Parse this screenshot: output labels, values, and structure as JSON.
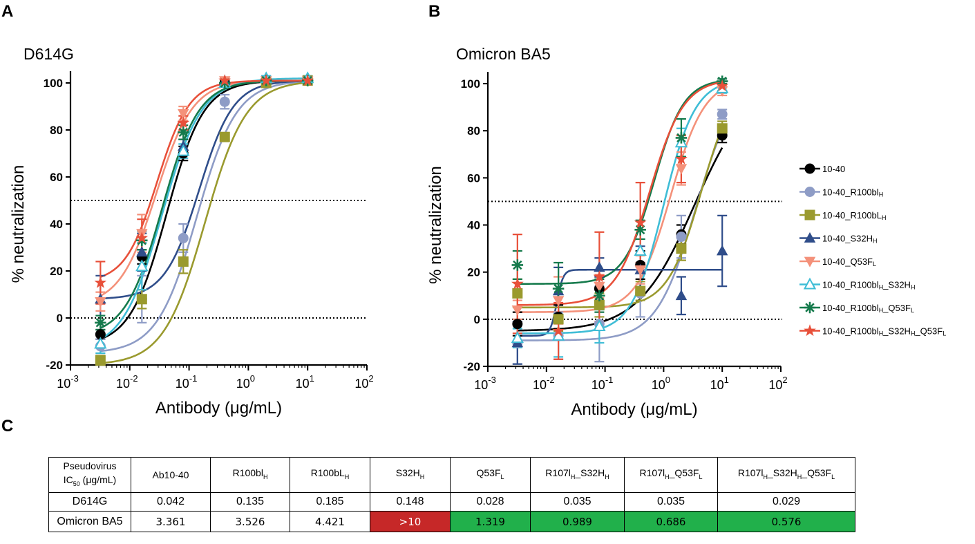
{
  "panels": {
    "a": {
      "letter": "A",
      "title": "D614G"
    },
    "b": {
      "letter": "B",
      "title": "Omicron BA5"
    },
    "c": {
      "letter": "C"
    }
  },
  "axes": {
    "ylabel": "% neutralization",
    "xlabel": "Antibody (μg/mL)",
    "y_ticks": [
      100,
      80,
      60,
      40,
      20,
      0,
      -20
    ],
    "x_ticks": [
      {
        "base": "10",
        "exp": "-3"
      },
      {
        "base": "10",
        "exp": "-2"
      },
      {
        "base": "10",
        "exp": "-1"
      },
      {
        "base": "10",
        "exp": "0"
      },
      {
        "base": "10",
        "exp": "1"
      },
      {
        "base": "10",
        "exp": "2"
      }
    ]
  },
  "legend": [
    {
      "key": "s1",
      "name": "10-40",
      "color": "#000000",
      "marker": "circle"
    },
    {
      "key": "s2",
      "name": "10-40_R100blH",
      "parts": [
        "10-40_R100bl",
        "H"
      ],
      "color": "#8e9cc6",
      "marker": "circle"
    },
    {
      "key": "s3",
      "name": "10-40_R100bLH",
      "parts": [
        "10-40_R100bL",
        "H"
      ],
      "color": "#9a9a2e",
      "marker": "square"
    },
    {
      "key": "s4",
      "name": "10-40_S32HH",
      "parts": [
        "10-40_S32H",
        "H"
      ],
      "color": "#2f4d8a",
      "marker": "triangle-up"
    },
    {
      "key": "s5",
      "name": "10-40_Q53FL",
      "parts": [
        "10-40_Q53F",
        "L"
      ],
      "color": "#f4917a",
      "marker": "triangle-down"
    },
    {
      "key": "s6",
      "name": "10-40_R100blH_S32HH",
      "parts": [
        "10-40_R100bl",
        "H",
        "_S32H",
        "H"
      ],
      "color": "#3fbdd6",
      "marker": "triangle-open"
    },
    {
      "key": "s7",
      "name": "10-40_R100blH_Q53FL",
      "parts": [
        "10-40_R100bl",
        "H",
        "_Q53F",
        "L"
      ],
      "color": "#157a4c",
      "marker": "asterisk"
    },
    {
      "key": "s8",
      "name": "10-40_R100blH_S32HH_Q53FL",
      "parts": [
        "10-40_R100bl",
        "H",
        "_S32H",
        "H",
        "_Q53F",
        "L"
      ],
      "color": "#e8503a",
      "marker": "star"
    }
  ],
  "chart_data": [
    {
      "type": "scatter",
      "title": "D614G",
      "xlabel": "Antibody (μg/mL)",
      "ylabel": "% neutralization",
      "x_scale": "log10",
      "xlim": [
        0.001,
        100
      ],
      "ylim": [
        -20,
        105
      ],
      "reference_lines_y": [
        50,
        0
      ],
      "x": [
        0.0032,
        0.016,
        0.08,
        0.4,
        2,
        10
      ],
      "series": [
        {
          "key": "s1",
          "name": "10-40",
          "values": [
            -7,
            26,
            70,
            100,
            101,
            101
          ],
          "err": [
            2,
            3,
            3,
            1,
            1,
            1
          ],
          "fit": {
            "bottom": -12,
            "top": 101,
            "ic50": 0.042,
            "hill": 1.4
          }
        },
        {
          "key": "s2",
          "name": "10-40_R100blH",
          "values": [
            -12,
            8,
            34,
            92,
            101,
            101
          ],
          "err": [
            3,
            10,
            6,
            3,
            1,
            1
          ],
          "fit": {
            "bottom": -15,
            "top": 101,
            "ic50": 0.135,
            "hill": 1.3
          }
        },
        {
          "key": "s3",
          "name": "10-40_R100bLH",
          "values": [
            -18,
            8,
            24,
            77,
            100,
            101
          ],
          "err": [
            2,
            4,
            5,
            1,
            1,
            1
          ],
          "fit": {
            "bottom": -20,
            "top": 101,
            "ic50": 0.185,
            "hill": 1.25
          }
        },
        {
          "key": "s4",
          "name": "10-40_S32HH",
          "values": [
            8,
            28,
            73,
            101,
            102,
            102
          ],
          "err": [
            10,
            8,
            3,
            1,
            1,
            1
          ],
          "fit": {
            "bottom": 8,
            "top": 101,
            "ic50": 0.148,
            "hill": 1.5
          }
        },
        {
          "key": "s5",
          "name": "10-40_Q53FL",
          "values": [
            7,
            36,
            87,
            101,
            101,
            101
          ],
          "err": [
            4,
            8,
            3,
            1,
            1,
            1
          ],
          "fit": {
            "bottom": 5,
            "top": 101,
            "ic50": 0.028,
            "hill": 1.4
          }
        },
        {
          "key": "s6",
          "name": "10-40_R100blH_S32HH",
          "values": [
            -11,
            22,
            71,
            100,
            102,
            102
          ],
          "err": [
            4,
            10,
            3,
            1,
            1,
            1
          ],
          "fit": {
            "bottom": -14,
            "top": 102,
            "ic50": 0.035,
            "hill": 1.3
          }
        },
        {
          "key": "s7",
          "name": "10-40_R100blH_Q53FL",
          "values": [
            -2,
            33,
            79,
            100,
            101,
            101
          ],
          "err": [
            3,
            4,
            3,
            1,
            1,
            1
          ],
          "fit": {
            "bottom": -8,
            "top": 101,
            "ic50": 0.035,
            "hill": 1.4
          }
        },
        {
          "key": "s8",
          "name": "10-40_R100blH_S32HH_Q53FL",
          "values": [
            15,
            34,
            83,
            101,
            101,
            101
          ],
          "err": [
            9,
            8,
            3,
            1,
            1,
            1
          ],
          "fit": {
            "bottom": 15,
            "top": 101,
            "ic50": 0.029,
            "hill": 1.6
          }
        }
      ]
    },
    {
      "type": "scatter",
      "title": "Omicron BA5",
      "xlabel": "Antibody (μg/mL)",
      "ylabel": "% neutralization",
      "x_scale": "log10",
      "xlim": [
        0.001,
        100
      ],
      "ylim": [
        -20,
        105
      ],
      "reference_lines_y": [
        50,
        0
      ],
      "x": [
        0.0032,
        0.016,
        0.08,
        0.4,
        2,
        10
      ],
      "series": [
        {
          "key": "s1",
          "name": "10-40",
          "values": [
            -2,
            1,
            13,
            23,
            36,
            78
          ],
          "err": [
            5,
            5,
            5,
            6,
            4,
            3
          ],
          "fit": {
            "bottom": -5,
            "top": 102,
            "ic50": 3.361,
            "hill": 0.9
          }
        },
        {
          "key": "s2",
          "name": "10-40_R100blH",
          "values": [
            -10,
            -7,
            -2,
            11,
            35,
            87
          ],
          "err": [
            9,
            10,
            16,
            10,
            9,
            2
          ],
          "fit": {
            "bottom": -9,
            "top": 103,
            "ic50": 3.526,
            "hill": 1.3
          }
        },
        {
          "key": "s3",
          "name": "10-40_R100bLH",
          "values": [
            11,
            0,
            6,
            12,
            30,
            81
          ],
          "err": [
            6,
            5,
            5,
            4,
            5,
            3
          ],
          "fit": {
            "bottom": 5,
            "top": 104,
            "ic50": 4.421,
            "hill": 1.5
          }
        },
        {
          "key": "s4",
          "name": "10-40_S32HH",
          "values": [
            -10,
            12,
            22,
            21,
            10,
            29
          ],
          "err": [
            9,
            10,
            4,
            10,
            8,
            15
          ],
          "fit": {
            "bottom": -7,
            "top": 21,
            "ic50": 0.015,
            "hill": 8
          }
        },
        {
          "key": "s5",
          "name": "10-40_Q53FL",
          "values": [
            4,
            8,
            14,
            21,
            64,
            97
          ],
          "err": [
            4,
            10,
            5,
            6,
            7,
            2
          ],
          "fit": {
            "bottom": 3,
            "top": 102,
            "ic50": 1.319,
            "hill": 1.5
          }
        },
        {
          "key": "s6",
          "name": "10-40_R100blH_S32HH",
          "values": [
            -8,
            -7,
            -3,
            29,
            75,
            98
          ],
          "err": [
            4,
            9,
            7,
            5,
            6,
            2
          ],
          "fit": {
            "bottom": -6,
            "top": 102,
            "ic50": 0.989,
            "hill": 1.6
          }
        },
        {
          "key": "s7",
          "name": "10-40_R100blH_Q53FL",
          "values": [
            23,
            13,
            10,
            38,
            77,
            101
          ],
          "err": [
            6,
            11,
            7,
            4,
            8,
            1
          ],
          "fit": {
            "bottom": 15,
            "top": 102,
            "ic50": 0.686,
            "hill": 1.7
          }
        },
        {
          "key": "s8",
          "name": "10-40_R100blH_S32HH_Q53FL",
          "values": [
            15,
            -5,
            18,
            41,
            68,
            99
          ],
          "err": [
            21,
            12,
            19,
            17,
            10,
            2
          ],
          "fit": {
            "bottom": 6,
            "top": 102,
            "ic50": 0.576,
            "hill": 1.5
          }
        }
      ]
    },
    {
      "type": "table",
      "title": "Pseudovirus IC50 (μg/mL)",
      "columns": [
        "Ab10-40",
        "R100blH",
        "R100bLH",
        "S32HH",
        "Q53FL",
        "R107lH_S32HH",
        "R107lH_Q53FL",
        "R107lH_S32HH_Q53FL"
      ],
      "rows": [
        {
          "name": "D614G",
          "values": [
            "0.042",
            "0.135",
            "0.185",
            "0.148",
            "0.028",
            "0.035",
            "0.035",
            "0.029"
          ]
        },
        {
          "name": "Omicron BA5",
          "values": [
            "3.361",
            "3.526",
            "4.421",
            ">10",
            "1.319",
            "0.989",
            "0.686",
            "0.576"
          ]
        }
      ],
      "highlight_colors": {
        "red": "#c62828",
        "green": "#21b04b"
      }
    }
  ],
  "table": {
    "corner": {
      "line1": "Pseudovirus",
      "line2_pre": "IC",
      "line2_sub": "50",
      "line2_post": " (μg/mL)"
    },
    "headers": [
      {
        "main": "Ab10-40"
      },
      {
        "main": "R100bl",
        "sub": "H"
      },
      {
        "main": "R100bL",
        "sub": "H"
      },
      {
        "main": "S32H",
        "sub": "H"
      },
      {
        "main": "Q53F",
        "sub": "L"
      },
      {
        "main": "R107l",
        "sub": "H",
        "main2": "_S32H",
        "sub2": "H"
      },
      {
        "main": "R107l",
        "sub": "H",
        "main2": "_Q53F",
        "sub2": "L"
      },
      {
        "main": "R107l",
        "sub": "H",
        "main2": "_S32H",
        "sub2": "H",
        "main3": "_Q53F",
        "sub3": "L"
      }
    ],
    "rows": [
      {
        "label": "D614G",
        "cells": [
          "0.042",
          "0.135",
          "0.185",
          "0.148",
          "0.028",
          "0.035",
          "0.035",
          "0.029"
        ],
        "status": [
          "",
          "",
          "",
          "",
          "",
          "",
          "",
          ""
        ]
      },
      {
        "label": "Omicron BA5",
        "cells": [
          "3.361",
          "3.526",
          "4.421",
          ">10",
          "1.319",
          "0.989",
          "0.686",
          "0.576"
        ],
        "status": [
          "",
          "",
          "",
          "red",
          "green",
          "green",
          "green",
          "green"
        ]
      }
    ]
  }
}
